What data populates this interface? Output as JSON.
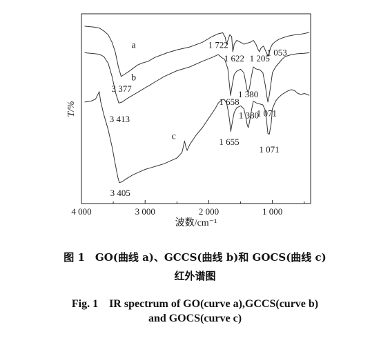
{
  "chart_data": {
    "type": "line",
    "ylabel": "T/%",
    "xlabel": "波数/cm⁻¹",
    "xlim": [
      4000,
      400
    ],
    "xticks": [
      4000,
      3000,
      2000,
      1000
    ],
    "xtick_labels": [
      "4 000",
      "3 000",
      "2 000",
      "1 000"
    ],
    "y_ticks_shown": false,
    "grid": false,
    "series": [
      {
        "name": "a",
        "color": "#333333",
        "x": [
          3950,
          3800,
          3720,
          3650,
          3580,
          3520,
          3470,
          3420,
          3377,
          3330,
          3260,
          3200,
          3120,
          3050,
          2950,
          2850,
          2750,
          2650,
          2500,
          2300,
          2100,
          1950,
          1850,
          1780,
          1740,
          1722,
          1700,
          1670,
          1640,
          1622,
          1600,
          1560,
          1500,
          1450,
          1400,
          1350,
          1300,
          1260,
          1230,
          1205,
          1180,
          1140,
          1100,
          1075,
          1053,
          1030,
          1000,
          950,
          900,
          850,
          800,
          750,
          700,
          650,
          600,
          550,
          500,
          450,
          420
        ],
        "y": [
          93.5,
          93,
          92.5,
          91,
          89,
          85,
          80,
          72,
          67,
          68,
          69.5,
          71,
          73,
          74,
          75,
          77,
          78.2,
          79.5,
          81,
          82.5,
          85,
          88,
          89.5,
          90,
          87.5,
          84,
          86,
          89,
          88,
          80,
          84,
          86,
          85,
          84,
          84.5,
          85,
          86,
          84,
          81.5,
          80,
          82,
          83,
          80,
          78,
          79,
          82,
          84,
          85.5,
          86.5,
          87.2,
          87.8,
          88.3,
          88.6,
          88.9,
          89.1,
          89.3,
          89.6,
          90,
          90.3
        ]
      },
      {
        "name": "b",
        "color": "#333333",
        "x": [
          3950,
          3800,
          3720,
          3650,
          3580,
          3520,
          3460,
          3413,
          3360,
          3300,
          3200,
          3100,
          3000,
          2920,
          2850,
          2700,
          2500,
          2300,
          2100,
          1950,
          1850,
          1800,
          1750,
          1700,
          1680,
          1658,
          1630,
          1600,
          1560,
          1500,
          1450,
          1420,
          1400,
          1380,
          1360,
          1330,
          1300,
          1260,
          1200,
          1150,
          1110,
          1090,
          1071,
          1050,
          1020,
          1000,
          950,
          900,
          850,
          800,
          750,
          700,
          600,
          500,
          420
        ],
        "y": [
          79.5,
          79,
          78.7,
          77.5,
          74,
          67,
          58,
          53,
          53.5,
          55,
          57,
          59,
          61,
          62.5,
          64,
          67,
          70,
          72,
          75,
          77,
          78.5,
          77,
          76,
          71,
          64,
          57,
          63,
          68,
          69.8,
          70.8,
          69,
          64,
          60,
          58.5,
          61,
          67,
          72,
          71,
          70.5,
          69,
          62,
          57,
          53.5,
          57,
          64,
          69,
          72,
          74,
          76,
          77.5,
          78,
          78.5,
          79,
          79.2,
          79.5
        ]
      },
      {
        "name": "c",
        "color": "#333333",
        "x": [
          3950,
          3850,
          3780,
          3750,
          3720,
          3700,
          3650,
          3580,
          3520,
          3470,
          3430,
          3405,
          3360,
          3300,
          3200,
          3100,
          3000,
          2900,
          2800,
          2700,
          2600,
          2500,
          2420,
          2400,
          2380,
          2360,
          2340,
          2300,
          2200,
          2100,
          2000,
          1900,
          1850,
          1800,
          1760,
          1720,
          1690,
          1670,
          1655,
          1630,
          1600,
          1560,
          1500,
          1450,
          1420,
          1400,
          1380,
          1360,
          1330,
          1300,
          1250,
          1200,
          1150,
          1110,
          1090,
          1071,
          1050,
          1020,
          1000,
          950,
          900,
          850,
          800,
          750,
          700,
          650,
          600,
          550,
          500,
          450,
          420
        ],
        "y": [
          53.5,
          54,
          55,
          57,
          59,
          54,
          47,
          39,
          30,
          21,
          14,
          11,
          11.5,
          13,
          15,
          16.5,
          18,
          19,
          20,
          21,
          22.5,
          24,
          27,
          30,
          33,
          30,
          28,
          31,
          36,
          40,
          45,
          50,
          53,
          54.5,
          55,
          53,
          48,
          43,
          38,
          43,
          48,
          50.5,
          51.5,
          50,
          46,
          42,
          40,
          43,
          49,
          54,
          53,
          52.5,
          52,
          49,
          43,
          37,
          36.5,
          42,
          50,
          54,
          56,
          57.5,
          58.5,
          59.5,
          60,
          59.5,
          58,
          57.5,
          58,
          57.5,
          57
        ]
      }
    ],
    "annotations": [
      {
        "text": "a",
        "x": 3180,
        "y": 82
      },
      {
        "text": "b",
        "x": 3180,
        "y": 65
      },
      {
        "text": "c",
        "x": 2550,
        "y": 34
      },
      {
        "text": "1 722",
        "x": 1850,
        "y": 82
      },
      {
        "text": "1 622",
        "x": 1600,
        "y": 75
      },
      {
        "text": "1 205",
        "x": 1200,
        "y": 75
      },
      {
        "text": "1 053",
        "x": 930,
        "y": 78
      },
      {
        "text": "3 377",
        "x": 3370,
        "y": 59
      },
      {
        "text": "1 658",
        "x": 1680,
        "y": 52
      },
      {
        "text": "1 380",
        "x": 1380,
        "y": 56
      },
      {
        "text": "1 071",
        "x": 1090,
        "y": 46
      },
      {
        "text": "3 413",
        "x": 3400,
        "y": 43
      },
      {
        "text": "1 380",
        "x": 1370,
        "y": 45
      },
      {
        "text": "1 655",
        "x": 1680,
        "y": 31
      },
      {
        "text": "1 071",
        "x": 1050,
        "y": 27
      },
      {
        "text": "3 405",
        "x": 3390,
        "y": 4
      }
    ]
  },
  "caption": {
    "zh_line1": "图 1　GO(曲线 a)、GCCS(曲线 b)和 GOCS(曲线 c)",
    "zh_line2": "红外谱图",
    "en_line1": "Fig. 1　IR spectrum of GO(curve a),GCCS(curve b)",
    "en_line2": "and GOCS(curve c)"
  }
}
